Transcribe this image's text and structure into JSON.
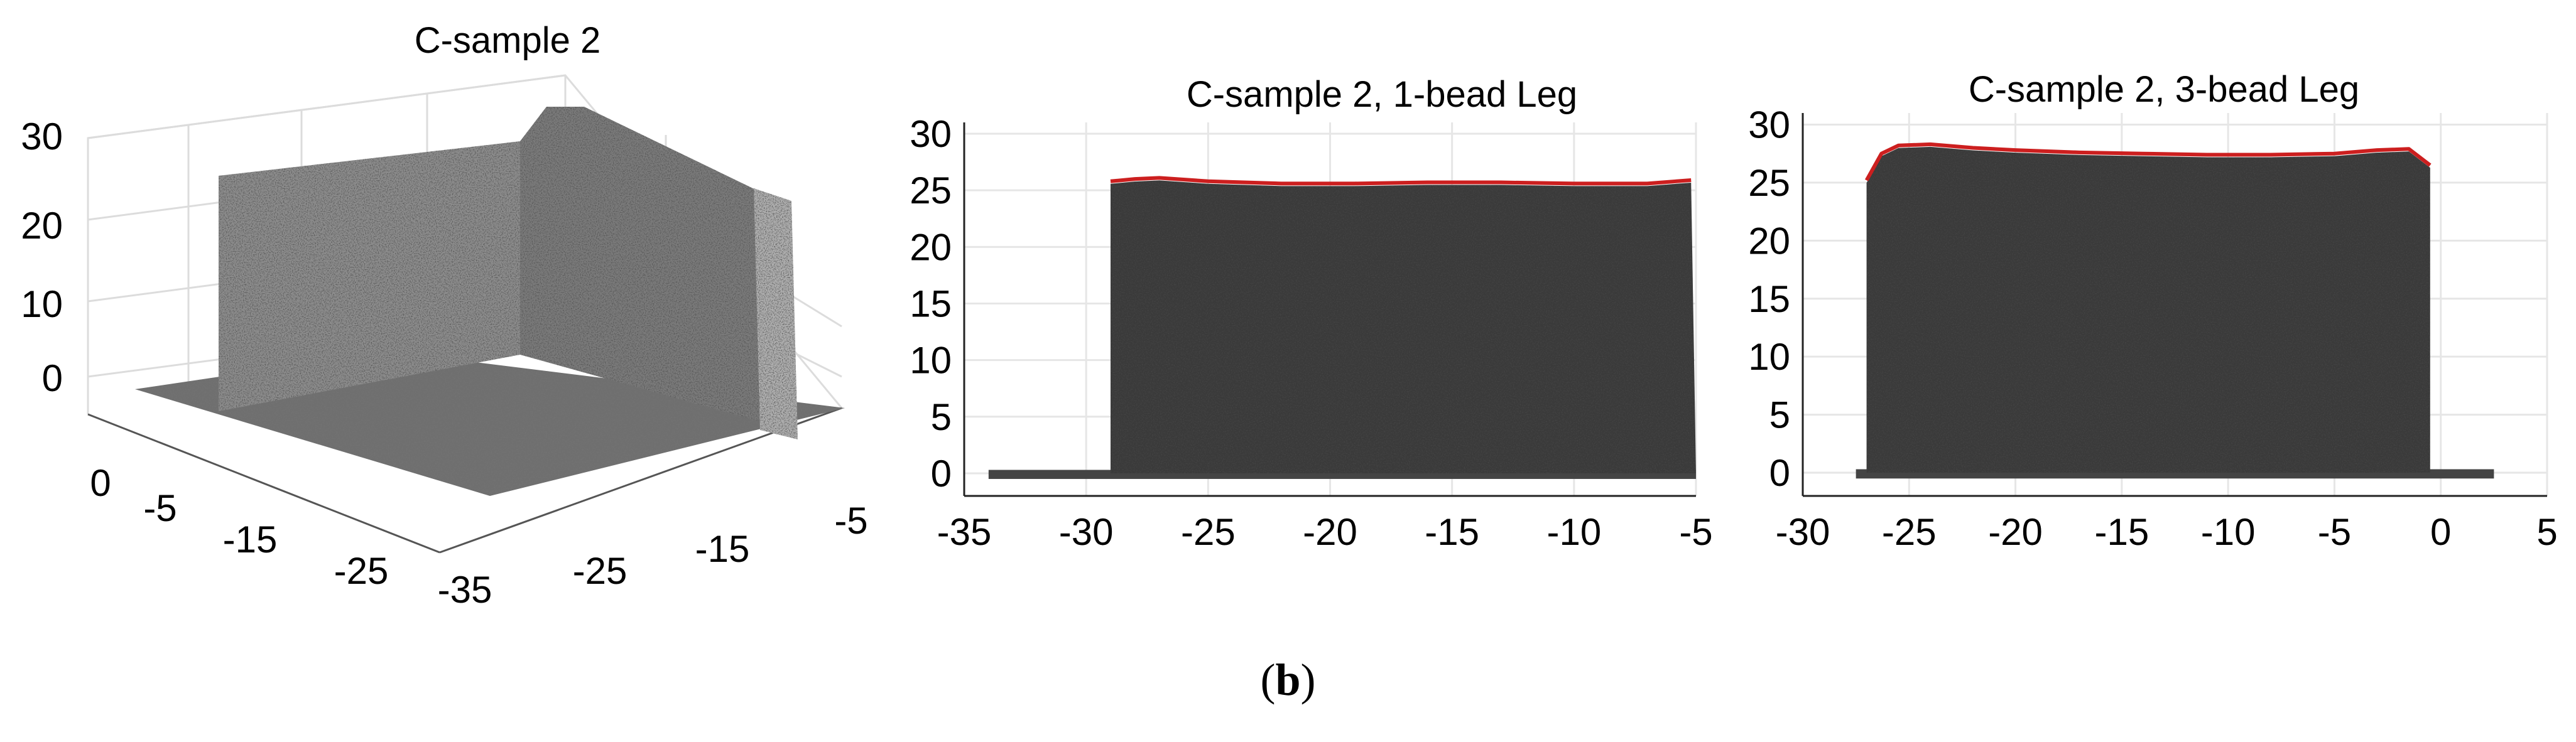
{
  "caption": {
    "open": "(",
    "letter": "b",
    "close": ")"
  },
  "chart_data": [
    {
      "type": "scatter",
      "title": "C-sample 2",
      "view": "3d",
      "zticks": [
        "30",
        "20",
        "10",
        "0"
      ],
      "xticks": [
        "0",
        "-5",
        "-15",
        "-25"
      ],
      "yticks": [
        "-35",
        "-25",
        "-15",
        "-5"
      ],
      "zlim": [
        0,
        30
      ],
      "grid": true,
      "shape": "L-shaped wall point cloud on a base plate"
    },
    {
      "type": "scatter",
      "title": "C-sample 2, 1-bead Leg",
      "xticks": [
        -35,
        -30,
        -25,
        -20,
        -15,
        -10,
        -5
      ],
      "yticks": [
        0,
        5,
        10,
        15,
        20,
        25,
        30
      ],
      "xlim": [
        -35,
        -5
      ],
      "ylim": [
        -2,
        31
      ],
      "grid": true,
      "wall": {
        "x_start": -29,
        "x_end": -5,
        "height": 25.5
      },
      "base": {
        "x_start": -34,
        "x_end": -5
      },
      "top_profile": {
        "color": "#cc1f1f",
        "x": [
          -29,
          -28,
          -27,
          -25,
          -22,
          -19,
          -16,
          -13,
          -10,
          -7,
          -5.2
        ],
        "y": [
          25.8,
          26.0,
          26.1,
          25.8,
          25.6,
          25.6,
          25.7,
          25.7,
          25.6,
          25.6,
          25.9
        ]
      }
    },
    {
      "type": "scatter",
      "title": "C-sample 2, 3-bead Leg",
      "xticks": [
        -30,
        -25,
        -20,
        -15,
        -10,
        -5,
        0,
        5
      ],
      "yticks": [
        0,
        5,
        10,
        15,
        20,
        25,
        30
      ],
      "xlim": [
        -30,
        5
      ],
      "ylim": [
        -2,
        31
      ],
      "grid": true,
      "wall": {
        "x_start": -27,
        "x_end": -0.5,
        "height": 27
      },
      "base": {
        "x_start": -27.5,
        "x_end": 2.5
      },
      "top_profile": {
        "color": "#cc1f1f",
        "x": [
          -27,
          -26.3,
          -25.5,
          -24,
          -22,
          -20,
          -17,
          -14,
          -11,
          -8,
          -5,
          -3,
          -1.5,
          -0.5
        ],
        "y": [
          25.2,
          27.5,
          28.2,
          28.3,
          28.0,
          27.8,
          27.6,
          27.5,
          27.4,
          27.4,
          27.5,
          27.8,
          27.9,
          26.5
        ]
      }
    }
  ]
}
